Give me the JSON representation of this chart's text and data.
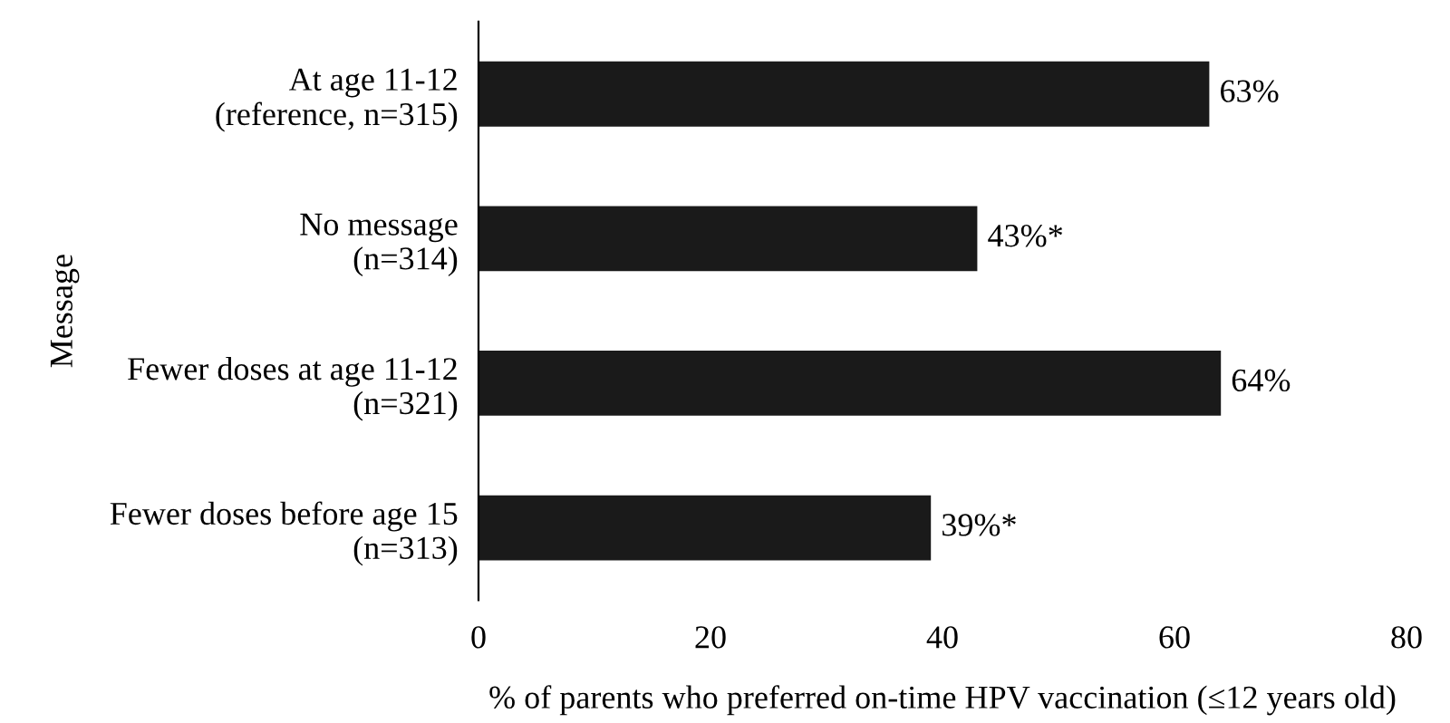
{
  "chart_data": {
    "type": "bar",
    "orientation": "horizontal",
    "xlabel": "% of parents who preferred on-time HPV vaccination (≤12 years old)",
    "ylabel": "Message",
    "categories": [
      "At age 11-12\n(reference, n=315)",
      "No message\n(n=314)",
      "Fewer doses at age 11-12\n(n=321)",
      "Fewer doses before age 15\n(n=313)"
    ],
    "values": [
      63,
      43,
      64,
      39
    ],
    "color": "#1a1a1a",
    "value_labels": [
      "63%",
      "43%*",
      "64%",
      "39%*"
    ],
    "xlim": [
      0,
      80
    ],
    "xticks": [
      0,
      20,
      40,
      60,
      80
    ],
    "grid": false,
    "legend": false
  }
}
